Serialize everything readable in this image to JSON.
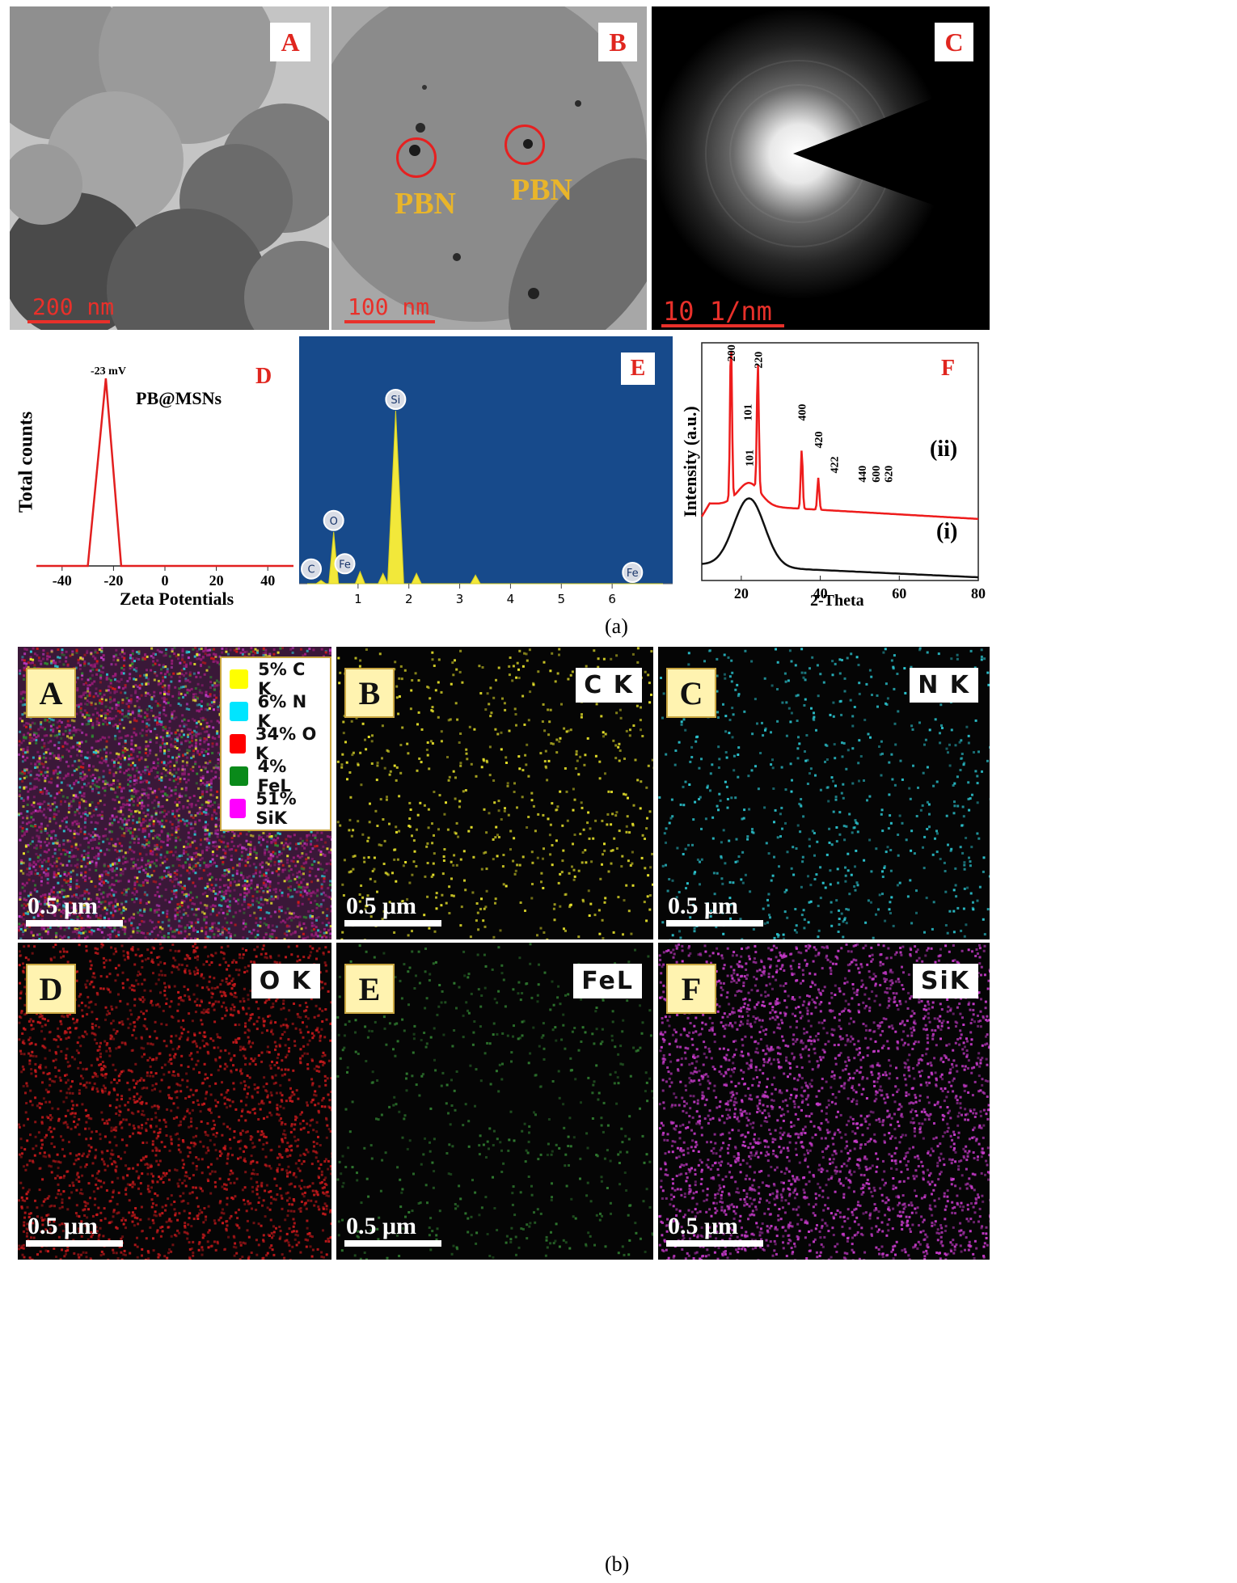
{
  "figure_a": {
    "tem_A": {
      "letter": "A",
      "scale": "200 nm"
    },
    "tem_B": {
      "letter": "B",
      "scale": "100 nm",
      "label_left": "PBN",
      "label_right": "PBN"
    },
    "tem_C": {
      "letter": "C",
      "scale": "10 1/nm"
    },
    "caption": "(a)"
  },
  "zeta": {
    "letter": "D",
    "peak_label": "-23 mV",
    "legend": "PB@MSNs",
    "ylabel": "Total counts",
    "xlabel": "Zeta Potentials",
    "ticks": [
      "-40",
      "-20",
      "0",
      "20",
      "40"
    ]
  },
  "eds": {
    "letter": "E",
    "peaks": [
      "Si",
      "O",
      "C",
      "Fe",
      "Fe"
    ],
    "ticks": [
      "1",
      "2",
      "3",
      "4",
      "5",
      "6"
    ]
  },
  "xrd": {
    "letter": "F",
    "ylabel": "Intensity (a.u.)",
    "xlabel": "2-Theta",
    "ticks": [
      "20",
      "40",
      "60",
      "80"
    ],
    "curve_ii": "(ii)",
    "curve_i": "(i)",
    "peaks_ii": [
      "200",
      "101",
      "220",
      "400",
      "420",
      "422",
      "440",
      "600",
      "620"
    ],
    "peak_i": "101"
  },
  "maps": {
    "caption": "(b)",
    "scale": "0.5  μm",
    "panels": [
      {
        "letter": "A",
        "label": ""
      },
      {
        "letter": "B",
        "label": "C K"
      },
      {
        "letter": "C",
        "label": "N K"
      },
      {
        "letter": "D",
        "label": "O K"
      },
      {
        "letter": "E",
        "label": "FeL"
      },
      {
        "letter": "F",
        "label": "SiK"
      }
    ],
    "legend": [
      {
        "text": "5% C K",
        "color": "#ffff00"
      },
      {
        "text": "6% N K",
        "color": "#00e5ff"
      },
      {
        "text": "34% O K",
        "color": "#ff0000"
      },
      {
        "text": "4% FeL",
        "color": "#0a8a1a"
      },
      {
        "text": "51% SiK",
        "color": "#ff00ff"
      }
    ]
  },
  "chart_data": [
    {
      "type": "line",
      "title": "",
      "xlabel": "Zeta Potentials",
      "ylabel": "Total counts",
      "xlim": [
        -50,
        50
      ],
      "series": [
        {
          "x": [
            -50,
            -30,
            -23,
            -17,
            50
          ],
          "y": [
            0,
            0,
            1,
            0,
            0
          ]
        }
      ],
      "annotations": [
        "-23 mV",
        "PB@MSNs"
      ]
    },
    {
      "type": "line",
      "title": "",
      "xlabel": "",
      "ylabel": "",
      "xlim": [
        0,
        7
      ],
      "series": [
        {
          "x": [
            0.27,
            0.52,
            1.04,
            1.49,
            1.74,
            2.15,
            3.31,
            6.4
          ],
          "y": [
            0.02,
            0.3,
            0.07,
            0.06,
            1.0,
            0.06,
            0.05,
            0.0
          ]
        }
      ],
      "annotations": [
        "Si",
        "O",
        "C",
        "Fe",
        "Fe"
      ]
    },
    {
      "type": "line",
      "title": "",
      "xlabel": "2-Theta",
      "ylabel": "Intensity (a.u.)",
      "xlim": [
        10,
        80
      ],
      "series": [
        {
          "name": "(ii)",
          "x": [
            17.4,
            22,
            24.2,
            35.3,
            39.5,
            43.5,
            50.5,
            54,
            57.2
          ],
          "y": [
            1.0,
            0.45,
            0.86,
            0.56,
            0.44,
            0.3,
            0.26,
            0.24,
            0.22
          ]
        },
        {
          "name": "(i)",
          "x": [
            10,
            22,
            40,
            80
          ],
          "y": [
            0.08,
            0.38,
            0.04,
            0.0
          ]
        }
      ]
    }
  ]
}
